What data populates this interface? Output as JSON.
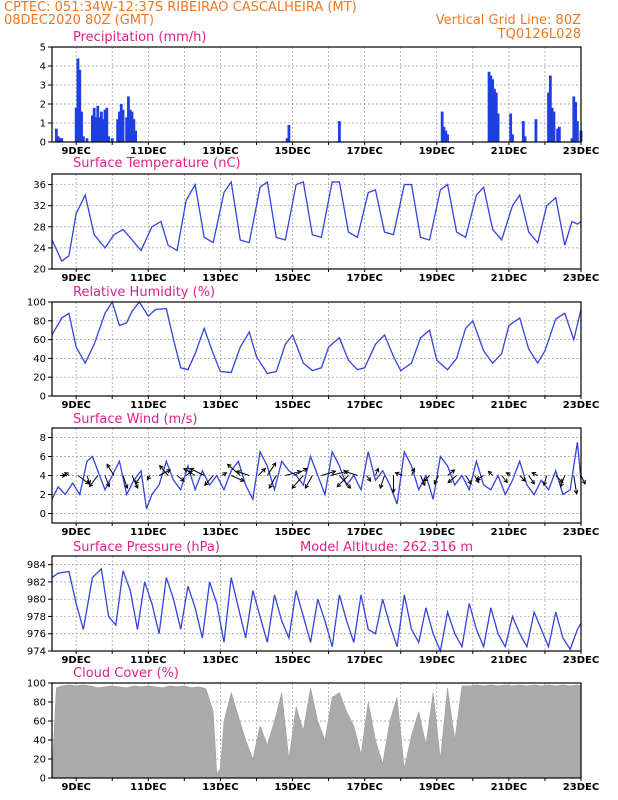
{
  "header": {
    "line1_left": "CPTEC:  051:34W-12:37S  RIBEIRAO CASCALHEIRA (MT)",
    "line2_left": "08DEC2020 80Z (GMT)",
    "line2_right": "Vertical Grid Line: 80Z",
    "line3_right": "TQ0126L028"
  },
  "x_labels": [
    "9DEC",
    "11DEC",
    "13DEC",
    "15DEC",
    "17DEC",
    "19DEC",
    "21DEC",
    "23DEC"
  ],
  "chart_data": [
    {
      "type": "bar",
      "title": "Precipitation (mm/h)",
      "x_start_day": 8.33,
      "x_end_day": 23.0,
      "ylim": [
        0,
        5
      ],
      "yticks": [
        0,
        1,
        2,
        3,
        4,
        5
      ],
      "x": [
        8.45,
        8.5,
        8.55,
        8.6,
        9.0,
        9.05,
        9.1,
        9.15,
        9.2,
        9.3,
        9.45,
        9.5,
        9.55,
        9.6,
        9.65,
        9.7,
        9.75,
        9.8,
        9.85,
        9.9,
        10.0,
        10.15,
        10.2,
        10.25,
        10.3,
        10.4,
        10.45,
        10.5,
        10.55,
        10.6,
        10.65,
        14.85,
        14.9,
        16.3,
        19.15,
        19.2,
        19.25,
        19.3,
        20.45,
        20.5,
        20.55,
        20.6,
        20.65,
        20.7,
        21.05,
        21.1,
        21.4,
        21.45,
        21.75,
        22.1,
        22.15,
        22.2,
        22.25,
        22.35,
        22.4,
        22.75,
        22.8,
        22.85,
        22.9,
        23.0
      ],
      "values": [
        0.7,
        0.3,
        0.2,
        0.2,
        1.8,
        4.4,
        3.8,
        1.6,
        0.3,
        0.2,
        1.4,
        1.8,
        1.3,
        1.9,
        1.3,
        1.6,
        1.2,
        1.7,
        1.8,
        0.3,
        0.2,
        1.2,
        1.6,
        2.0,
        1.7,
        1.3,
        2.4,
        1.7,
        1.6,
        1.2,
        0.6,
        0.2,
        0.9,
        1.1,
        1.6,
        0.8,
        0.6,
        0.4,
        3.7,
        3.5,
        3.3,
        2.8,
        2.6,
        1.5,
        1.5,
        0.4,
        1.1,
        0.3,
        1.2,
        2.6,
        3.5,
        1.8,
        1.6,
        0.7,
        0.8,
        0.2,
        2.4,
        2.1,
        1.1,
        0.6
      ]
    },
    {
      "type": "line",
      "title": "Surface Temperature (nC)",
      "ylim": [
        20,
        38
      ],
      "yticks": [
        20,
        24,
        28,
        32,
        36
      ],
      "x": [
        8.33,
        8.6,
        8.8,
        9.0,
        9.25,
        9.5,
        9.8,
        10.05,
        10.3,
        10.55,
        10.8,
        11.1,
        11.35,
        11.55,
        11.8,
        12.05,
        12.3,
        12.55,
        12.8,
        13.1,
        13.3,
        13.55,
        13.8,
        14.1,
        14.3,
        14.55,
        14.8,
        15.1,
        15.3,
        15.55,
        15.8,
        16.1,
        16.3,
        16.55,
        16.8,
        17.1,
        17.3,
        17.55,
        17.8,
        18.1,
        18.3,
        18.55,
        18.8,
        19.1,
        19.3,
        19.55,
        19.8,
        20.1,
        20.3,
        20.55,
        20.8,
        21.1,
        21.3,
        21.55,
        21.8,
        22.05,
        22.3,
        22.55,
        22.75,
        22.9,
        23.0
      ],
      "values": [
        25.5,
        21.5,
        22.5,
        30.5,
        34.0,
        26.5,
        24.0,
        26.5,
        27.5,
        25.5,
        23.5,
        28.0,
        29.0,
        24.5,
        23.5,
        33.0,
        36.0,
        26.0,
        25.0,
        34.5,
        36.5,
        25.5,
        25.0,
        35.5,
        36.5,
        26.0,
        25.5,
        36.0,
        36.5,
        26.5,
        26.0,
        36.5,
        36.5,
        27.0,
        26.0,
        34.5,
        35.0,
        27.0,
        26.5,
        36.0,
        36.0,
        26.0,
        25.5,
        35.0,
        36.0,
        27.0,
        26.0,
        34.0,
        35.5,
        27.5,
        25.5,
        32.0,
        34.0,
        27.0,
        25.0,
        32.0,
        33.5,
        24.5,
        29.0,
        28.5,
        29.0
      ]
    },
    {
      "type": "line",
      "title": "Relative Humidity (%)",
      "ylim": [
        0,
        100
      ],
      "yticks": [
        0,
        20,
        40,
        60,
        80,
        100
      ],
      "x": [
        8.33,
        8.6,
        8.8,
        9.0,
        9.25,
        9.5,
        9.8,
        10.0,
        10.2,
        10.4,
        10.55,
        10.75,
        11.0,
        11.2,
        11.5,
        11.7,
        11.9,
        12.1,
        12.3,
        12.55,
        12.8,
        13.0,
        13.3,
        13.55,
        13.8,
        14.0,
        14.3,
        14.55,
        14.8,
        15.0,
        15.3,
        15.55,
        15.8,
        16.0,
        16.3,
        16.55,
        16.8,
        17.0,
        17.3,
        17.55,
        17.8,
        18.0,
        18.3,
        18.55,
        18.8,
        19.0,
        19.3,
        19.55,
        19.8,
        20.0,
        20.3,
        20.55,
        20.8,
        21.0,
        21.3,
        21.55,
        21.8,
        22.0,
        22.3,
        22.55,
        22.8,
        23.0
      ],
      "values": [
        65,
        83,
        88,
        52,
        35,
        55,
        88,
        100,
        75,
        78,
        90,
        100,
        85,
        92,
        93,
        60,
        30,
        28,
        45,
        72,
        45,
        26,
        25,
        52,
        68,
        42,
        24,
        26,
        55,
        65,
        35,
        27,
        30,
        52,
        62,
        38,
        28,
        30,
        55,
        65,
        42,
        27,
        35,
        62,
        70,
        38,
        28,
        40,
        72,
        80,
        48,
        35,
        45,
        75,
        83,
        50,
        35,
        48,
        82,
        88,
        60,
        92
      ]
    },
    {
      "type": "line",
      "title": "Surface Wind (m/s)",
      "ylim": [
        -1,
        9
      ],
      "yticks": [
        0,
        2,
        4,
        6,
        8
      ],
      "x": [
        8.33,
        8.5,
        8.7,
        8.9,
        9.1,
        9.3,
        9.45,
        9.6,
        9.8,
        10.0,
        10.2,
        10.4,
        10.6,
        10.8,
        10.95,
        11.1,
        11.3,
        11.5,
        11.7,
        11.9,
        12.1,
        12.3,
        12.5,
        12.7,
        12.9,
        13.1,
        13.3,
        13.5,
        13.7,
        13.9,
        14.1,
        14.3,
        14.5,
        14.7,
        14.9,
        15.1,
        15.3,
        15.5,
        15.7,
        15.9,
        16.1,
        16.3,
        16.5,
        16.7,
        16.9,
        17.1,
        17.3,
        17.5,
        17.7,
        17.9,
        18.1,
        18.3,
        18.5,
        18.7,
        18.9,
        19.1,
        19.3,
        19.5,
        19.7,
        19.9,
        20.1,
        20.3,
        20.5,
        20.7,
        20.9,
        21.1,
        21.3,
        21.5,
        21.7,
        21.9,
        22.1,
        22.3,
        22.5,
        22.7,
        22.9,
        23.0
      ],
      "values": [
        1.5,
        2.8,
        2.0,
        3.2,
        2.0,
        5.5,
        6.0,
        4.5,
        2.5,
        4.0,
        5.5,
        2.0,
        3.5,
        4.5,
        0.5,
        2.0,
        3.0,
        5.5,
        3.5,
        2.5,
        5.0,
        2.5,
        4.5,
        3.0,
        4.0,
        2.5,
        4.5,
        5.5,
        3.0,
        1.5,
        6.5,
        5.0,
        2.5,
        5.5,
        4.5,
        4.0,
        3.0,
        6.0,
        4.0,
        2.0,
        6.5,
        5.0,
        3.0,
        4.0,
        2.5,
        6.5,
        3.5,
        4.5,
        3.0,
        1.0,
        6.5,
        5.0,
        2.5,
        4.0,
        1.5,
        6.0,
        5.0,
        3.0,
        4.0,
        2.5,
        5.5,
        3.0,
        2.5,
        4.0,
        2.0,
        3.5,
        5.5,
        3.0,
        2.0,
        3.5,
        2.5,
        4.5,
        2.0,
        2.5,
        7.5,
        3.5
      ],
      "arrows_x": [
        8.55,
        8.8,
        9.05,
        9.3,
        9.6,
        9.8,
        10.05,
        10.3,
        10.55,
        10.8,
        11.05,
        11.3,
        11.55,
        11.8,
        12.05,
        12.3,
        12.55,
        12.8,
        13.05,
        13.3,
        13.55,
        13.8,
        14.05,
        14.3,
        14.55,
        14.8,
        15.05,
        15.3,
        15.55,
        15.8,
        16.05,
        16.3,
        16.55,
        16.8,
        17.05,
        17.3,
        17.55,
        17.8,
        18.05,
        18.3,
        18.55,
        18.8,
        19.05,
        19.3,
        19.55,
        19.8,
        20.05,
        20.3,
        20.55,
        20.8,
        21.05,
        21.3,
        21.55,
        21.8,
        22.05,
        22.3,
        22.55,
        22.8,
        23.0
      ],
      "arrows_u": [
        0.4,
        -0.3,
        0.8,
        0.2,
        -0.6,
        0.3,
        -0.5,
        0.3,
        0.4,
        -0.4,
        -0.2,
        0.8,
        -0.6,
        0.5,
        0.4,
        -0.8,
        -1.0,
        -0.6,
        0.3,
        0.9,
        -0.9,
        -0.9,
        0.5,
        0.6,
        -0.5,
        1.1,
        0.9,
        -0.8,
        -0.5,
        1.0,
        1.2,
        0.8,
        -0.8,
        -0.9,
        0.3,
        0.2,
        -0.3,
        0.0,
        -0.5,
        0.2,
        0.3,
        -0.4,
        -0.3,
        0.5,
        -0.6,
        0.4,
        0.3,
        -0.5,
        -0.3,
        0.4,
        -0.3,
        0.4,
        0.4,
        -0.4,
        -0.2,
        0.5,
        -0.3,
        0.2,
        0.3
      ],
      "arrows_v": [
        0.0,
        0.2,
        -0.6,
        -0.6,
        -0.8,
        -0.8,
        0.8,
        -0.9,
        -0.9,
        -0.6,
        -0.3,
        0.4,
        0.7,
        -0.4,
        0.3,
        0.5,
        0.5,
        -0.7,
        0.2,
        -0.4,
        0.8,
        0.3,
        0.5,
        0.9,
        -0.9,
        0.3,
        0.5,
        -0.9,
        -0.9,
        0.3,
        0.3,
        -0.9,
        -0.8,
        0.3,
        -0.4,
        0.5,
        -0.9,
        -1.2,
        0.2,
        0.5,
        -0.7,
        -0.4,
        -0.6,
        0.4,
        -0.5,
        -0.6,
        -0.5,
        -0.3,
        0.3,
        -0.5,
        0.2,
        -0.4,
        -0.6,
        0.2,
        -0.7,
        -0.5,
        -0.8,
        -1.3,
        -0.6
      ]
    },
    {
      "type": "line",
      "title": "Surface Pressure (hPa)",
      "subtitle": "Model Altitude: 262.316 m",
      "ylim": [
        974,
        985
      ],
      "yticks": [
        974,
        976,
        978,
        980,
        982,
        984
      ],
      "x": [
        8.33,
        8.5,
        8.8,
        9.0,
        9.2,
        9.45,
        9.7,
        9.9,
        10.1,
        10.3,
        10.5,
        10.7,
        10.9,
        11.1,
        11.3,
        11.5,
        11.7,
        11.9,
        12.1,
        12.3,
        12.5,
        12.7,
        12.9,
        13.1,
        13.3,
        13.5,
        13.7,
        13.9,
        14.1,
        14.3,
        14.5,
        14.7,
        14.9,
        15.1,
        15.3,
        15.5,
        15.7,
        15.9,
        16.1,
        16.3,
        16.5,
        16.7,
        16.9,
        17.1,
        17.3,
        17.5,
        17.7,
        17.9,
        18.1,
        18.3,
        18.5,
        18.7,
        18.9,
        19.1,
        19.3,
        19.5,
        19.7,
        19.9,
        20.1,
        20.3,
        20.5,
        20.7,
        20.9,
        21.1,
        21.3,
        21.5,
        21.7,
        21.9,
        22.1,
        22.3,
        22.5,
        22.7,
        22.9,
        23.0
      ],
      "values": [
        982.5,
        983.0,
        983.2,
        979.5,
        976.5,
        982.5,
        983.5,
        978.0,
        977.0,
        983.3,
        981.0,
        976.5,
        982.0,
        979.5,
        976.0,
        982.5,
        980.0,
        976.5,
        981.5,
        979.0,
        975.5,
        982.0,
        979.5,
        975.0,
        982.5,
        979.0,
        975.5,
        981.0,
        978.0,
        975.0,
        980.5,
        977.5,
        975.5,
        981.0,
        978.0,
        975.0,
        980.0,
        977.5,
        974.5,
        980.5,
        977.5,
        975.0,
        980.5,
        976.5,
        976.0,
        980.0,
        977.0,
        974.5,
        980.5,
        976.5,
        975.0,
        979.0,
        976.0,
        974.0,
        978.5,
        976.0,
        974.5,
        979.5,
        976.5,
        974.5,
        979.0,
        976.0,
        974.5,
        978.0,
        976.0,
        974.5,
        978.5,
        976.5,
        974.5,
        978.5,
        975.5,
        974.2,
        976.5,
        977.2
      ]
    },
    {
      "type": "area",
      "title": "Cloud Cover (%)",
      "ylim": [
        0,
        100
      ],
      "yticks": [
        0,
        20,
        40,
        60,
        80,
        100
      ],
      "x": [
        8.33,
        8.45,
        8.6,
        8.8,
        9.0,
        9.2,
        9.4,
        9.6,
        9.8,
        10.0,
        10.2,
        10.4,
        10.6,
        10.8,
        11.0,
        11.2,
        11.4,
        11.6,
        11.8,
        12.0,
        12.2,
        12.4,
        12.6,
        12.8,
        12.9,
        13.0,
        13.1,
        13.3,
        13.5,
        13.7,
        13.9,
        14.1,
        14.3,
        14.5,
        14.7,
        14.9,
        15.1,
        15.3,
        15.5,
        15.7,
        15.9,
        16.1,
        16.3,
        16.5,
        16.7,
        16.9,
        17.1,
        17.3,
        17.5,
        17.7,
        17.9,
        18.1,
        18.3,
        18.5,
        18.7,
        18.9,
        19.1,
        19.3,
        19.5,
        19.7,
        19.9,
        20.1,
        20.3,
        20.5,
        20.7,
        20.9,
        21.1,
        21.3,
        21.5,
        21.7,
        21.9,
        22.1,
        22.3,
        22.5,
        22.7,
        22.9,
        23.0
      ],
      "values": [
        5,
        95,
        97,
        98,
        97,
        98,
        97,
        95,
        96,
        97,
        96,
        95,
        97,
        96,
        97,
        96,
        95,
        97,
        96,
        97,
        95,
        96,
        94,
        70,
        5,
        10,
        60,
        90,
        65,
        40,
        20,
        55,
        35,
        60,
        90,
        20,
        75,
        50,
        95,
        60,
        40,
        85,
        90,
        70,
        55,
        25,
        80,
        40,
        15,
        60,
        85,
        10,
        45,
        70,
        35,
        90,
        20,
        95,
        40,
        97,
        97,
        98,
        97,
        98,
        97,
        98,
        97,
        98,
        97,
        98,
        97,
        98,
        97,
        98,
        97,
        98,
        97
      ]
    }
  ]
}
